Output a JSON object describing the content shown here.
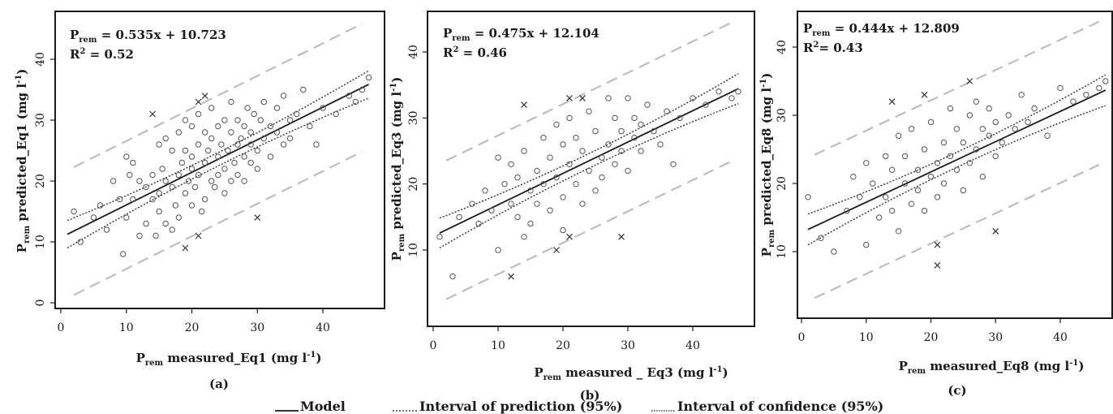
{
  "panels": [
    {
      "id": "a",
      "equation": "0.535x + 10.723",
      "r2": "0.52",
      "r2_sep": " = ",
      "ylabel_suffix": "predicted_Eq1 (mg l",
      "xlabel_suffix": "measured_Eq1 (mg l",
      "panel_label": "(a)",
      "ylim": [
        0,
        45
      ],
      "xlim": [
        0,
        48
      ],
      "xticks": [
        "0",
        "10",
        "20",
        "30",
        "40"
      ],
      "yticks": [
        "0",
        "10",
        "20",
        "30",
        "40"
      ]
    },
    {
      "id": "b",
      "equation": "0.475x + 12.104",
      "r2": "0.46",
      "r2_sep": " =  ",
      "ylabel_suffix": "predicted_Eq3 (mg l",
      "xlabel_suffix": "measured _ Eq3 (mg l",
      "panel_label": "(b)",
      "ylim": [
        0,
        45
      ],
      "xlim": [
        0,
        48
      ],
      "xticks": [
        "0",
        "10",
        "20",
        "30",
        "40"
      ],
      "yticks": [
        "10",
        "20",
        "30",
        "40"
      ]
    },
    {
      "id": "c",
      "equation": "0.444x + 12.809",
      "r2": "0.43",
      "r2_sep": "=  ",
      "ylabel_suffix": "predicted_Eq8 (mg l",
      "xlabel_suffix": "measured_Eq8 (mg l",
      "panel_label": "(c)",
      "ylim": [
        0,
        45
      ],
      "xlim": [
        0,
        48
      ],
      "xticks": [
        "0",
        "10",
        "20",
        "30",
        "40"
      ],
      "yticks": [
        "10",
        "20",
        "30",
        "40"
      ]
    }
  ],
  "common": {
    "var_main": "P",
    "var_sub": "rem",
    "r2_main": "R",
    "r2_sup": "2",
    "unit_sup": "-1",
    "close_paren": ")"
  },
  "legend": {
    "model": "Model",
    "prediction": "Interval of prediction (95%)",
    "confidence": "Interval of confidence (95%)"
  },
  "chart_data": [
    {
      "type": "scatter",
      "panel": "(a)",
      "fit": {
        "slope": 0.535,
        "intercept": 10.723,
        "r2": 0.52
      },
      "x": [
        2,
        3,
        5,
        6,
        7,
        8,
        9,
        9.5,
        10,
        10,
        10.5,
        11,
        11,
        12,
        12,
        13,
        13,
        14,
        14,
        14.5,
        15,
        15,
        15,
        15.5,
        16,
        16,
        16,
        17,
        17,
        17,
        17.5,
        18,
        18,
        18,
        18.5,
        19,
        19,
        19,
        19.5,
        20,
        20,
        20,
        20,
        20.5,
        21,
        21,
        21,
        21.5,
        22,
        22,
        22,
        22.5,
        23,
        23,
        23,
        23.5,
        24,
        24,
        24,
        24.5,
        25,
        25,
        25,
        25.5,
        26,
        26,
        26,
        26.5,
        27,
        27,
        27,
        27.5,
        28,
        28,
        28,
        28.5,
        29,
        29,
        29,
        29.5,
        30,
        30,
        30.5,
        31,
        31,
        32,
        32,
        33,
        33,
        34,
        34,
        35,
        35,
        36,
        37,
        38,
        39,
        40,
        42,
        44,
        45,
        46,
        47
      ],
      "y": [
        15,
        10,
        14,
        16,
        12,
        20,
        17,
        8,
        24,
        14,
        21,
        17,
        23,
        20,
        11,
        19,
        13,
        21,
        17,
        11,
        18,
        26,
        15,
        22,
        20,
        13,
        27,
        12,
        19,
        25,
        16,
        21,
        28,
        14,
        23,
        18,
        25,
        30,
        20,
        16,
        22,
        29,
        24,
        19,
        26,
        31,
        21,
        15,
        23,
        28,
        17,
        25,
        20,
        27,
        32,
        19,
        24,
        29,
        21,
        26,
        22,
        30,
        18,
        25,
        28,
        20,
        33,
        23,
        26,
        21,
        30,
        27,
        24,
        29,
        20,
        32,
        26,
        23,
        28,
        31,
        22,
        25,
        30,
        27,
        33,
        24,
        29,
        28,
        32,
        26,
        34,
        30,
        27,
        31,
        35,
        29,
        26,
        32,
        31,
        34,
        33,
        35,
        37
      ],
      "outliers_x": [
        14,
        21,
        19,
        21,
        22,
        30
      ],
      "outliers_y": [
        31,
        33,
        9,
        11,
        34,
        14
      ]
    },
    {
      "type": "scatter",
      "panel": "(b)",
      "fit": {
        "slope": 0.475,
        "intercept": 12.104,
        "r2": 0.46
      },
      "x": [
        1,
        3,
        4,
        6,
        7,
        8,
        9,
        10,
        10,
        11,
        12,
        12,
        13,
        13,
        14,
        14,
        15,
        15,
        16,
        16,
        17,
        17,
        18,
        18,
        19,
        19,
        20,
        20,
        20,
        21,
        21,
        22,
        22,
        23,
        23,
        24,
        24,
        25,
        25,
        26,
        26,
        27,
        27,
        28,
        28,
        29,
        29,
        30,
        30,
        31,
        31,
        32,
        32,
        33,
        34,
        35,
        36,
        37,
        38,
        40,
        42,
        44,
        46,
        47
      ],
      "y": [
        12,
        6,
        15,
        17,
        14,
        19,
        16,
        24,
        10,
        20,
        17,
        23,
        15,
        21,
        12,
        25,
        19,
        14,
        22,
        17,
        27,
        20,
        16,
        24,
        29,
        21,
        18,
        26,
        13,
        23,
        30,
        20,
        27,
        17,
        25,
        22,
        31,
        19,
        28,
        24,
        21,
        33,
        26,
        23,
        30,
        25,
        28,
        22,
        33,
        27,
        30,
        25,
        29,
        32,
        28,
        26,
        31,
        23,
        30,
        33,
        32,
        34,
        33,
        34
      ],
      "outliers_x": [
        12,
        14,
        19,
        21,
        21,
        23,
        29
      ],
      "outliers_y": [
        6,
        32,
        10,
        33,
        12,
        33,
        12
      ]
    },
    {
      "type": "scatter",
      "panel": "(c)",
      "fit": {
        "slope": 0.444,
        "intercept": 12.809,
        "r2": 0.43
      },
      "x": [
        1,
        3,
        5,
        7,
        8,
        9,
        10,
        10,
        11,
        12,
        13,
        13,
        14,
        14,
        15,
        15,
        16,
        16,
        17,
        17,
        18,
        18,
        19,
        19,
        20,
        20,
        21,
        21,
        22,
        22,
        23,
        23,
        24,
        24,
        25,
        25,
        26,
        26,
        27,
        27,
        28,
        28,
        29,
        29,
        30,
        30,
        31,
        32,
        33,
        34,
        35,
        36,
        38,
        40,
        42,
        44,
        46,
        47
      ],
      "y": [
        18,
        12,
        10,
        16,
        21,
        18,
        11,
        23,
        20,
        15,
        24,
        18,
        16,
        22,
        27,
        13,
        20,
        24,
        17,
        28,
        22,
        19,
        25,
        16,
        21,
        29,
        23,
        18,
        26,
        20,
        31,
        24,
        22,
        28,
        19,
        26,
        30,
        23,
        25,
        32,
        28,
        21,
        27,
        31,
        24,
        29,
        26,
        30,
        28,
        33,
        29,
        31,
        27,
        34,
        32,
        33,
        34,
        35
      ],
      "outliers_x": [
        14,
        19,
        21,
        21,
        26,
        30
      ],
      "outliers_y": [
        32,
        33,
        11,
        8,
        35,
        13
      ]
    }
  ]
}
